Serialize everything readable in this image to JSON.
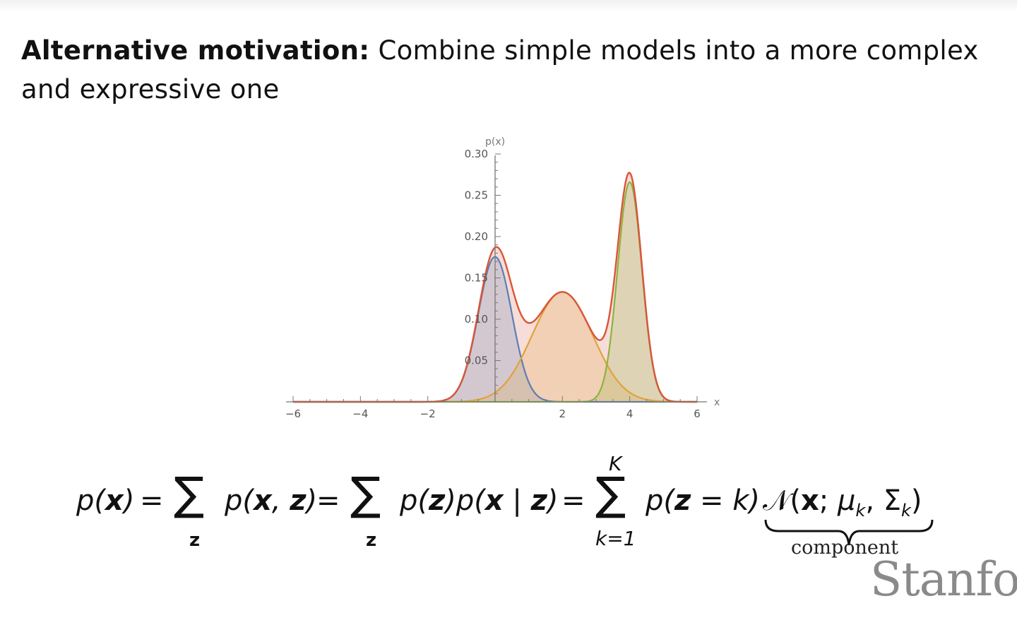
{
  "slide": {
    "heading_bold": "Alternative motivation:",
    "heading_rest": "Combine simple models into a more complex and expressive one",
    "component_label": "component",
    "logo_text": "Stanfor"
  },
  "formula": {
    "lhs": "p(x)",
    "term1": "p(x, z)",
    "term2": "p(z)p(x | z)",
    "term3": "p(z = k)",
    "term4": "𝒩(x; μk, Σk)",
    "sum_sub": "z",
    "sum_lower": "k=1",
    "sum_upper": "K"
  },
  "chart_data": {
    "type": "area",
    "xlabel": "x",
    "ylabel": "p(x)",
    "xlim": [
      -6,
      6
    ],
    "ylim": [
      0,
      0.3
    ],
    "xticks": [
      -6,
      -4,
      -2,
      2,
      4,
      6
    ],
    "yticks": [
      0.05,
      0.1,
      0.15,
      0.2,
      0.25,
      0.3
    ],
    "grid": false,
    "series": [
      {
        "role": "component",
        "distribution": "normal",
        "mean": 0.0,
        "sd": 0.5,
        "weight": 0.22,
        "color": "#5b7fb5"
      },
      {
        "role": "component",
        "distribution": "normal",
        "mean": 2.0,
        "sd": 0.9,
        "weight": 0.3,
        "color": "#e0a23a"
      },
      {
        "role": "component",
        "distribution": "normal",
        "mean": 4.0,
        "sd": 0.36,
        "weight": 0.24,
        "color": "#8db33f"
      },
      {
        "role": "mixture",
        "distribution": "sum of components",
        "color": "#d9553a"
      }
    ]
  }
}
